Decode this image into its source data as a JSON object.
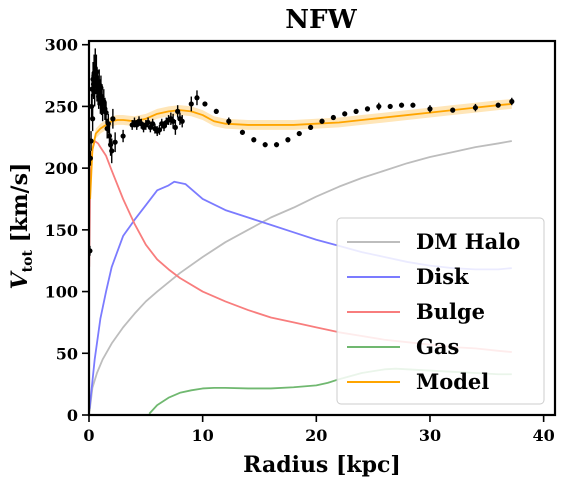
{
  "chart_data": {
    "type": "line",
    "title": "NFW",
    "xlabel": "Radius [kpc]",
    "ylabel_main": "V",
    "ylabel_sub": "tot",
    "ylabel_unit": " [km/s]",
    "xlim": [
      0,
      41
    ],
    "ylim": [
      0,
      303
    ],
    "xticks": [
      0,
      10,
      20,
      30,
      40
    ],
    "yticks": [
      0,
      50,
      100,
      150,
      200,
      250,
      300
    ],
    "legend_position": "lower-right",
    "series": [
      {
        "name": "Model",
        "color": "#ffa500",
        "band": 4,
        "x": [
          0.1,
          0.3,
          0.6,
          1.0,
          1.5,
          2.0,
          2.5,
          3.0,
          4.0,
          5.0,
          6.0,
          7.0,
          8.0,
          9.0,
          10.0,
          11.0,
          12.0,
          14.0,
          16.0,
          18.0,
          20.0,
          22.0,
          24.0,
          26.0,
          28.0,
          30.0,
          32.0,
          34.0,
          36.0,
          37.2
        ],
        "y": [
          175,
          215,
          228,
          232,
          235,
          238,
          239,
          239,
          238,
          240,
          244,
          246,
          247,
          246,
          243,
          238,
          236,
          235,
          235,
          235,
          236,
          237,
          239,
          241,
          243,
          245,
          247,
          249,
          251,
          252
        ]
      },
      {
        "name": "DM Halo",
        "color": "#bdbdbd",
        "x": [
          0.05,
          0.3,
          0.7,
          1.2,
          2,
          3,
          4,
          5,
          6,
          8,
          10,
          12,
          14,
          16,
          18,
          20,
          22,
          24,
          26,
          28,
          30,
          32,
          34,
          36,
          37.2
        ],
        "y": [
          3,
          22,
          34,
          45,
          58,
          71,
          82,
          92,
          100,
          115,
          128,
          140,
          150,
          160,
          168,
          177,
          185,
          192,
          198,
          204,
          209,
          213,
          217,
          220,
          222
        ]
      },
      {
        "name": "Disk",
        "color": "#7b7bff",
        "x": [
          0.05,
          0.5,
          1.0,
          1.5,
          2.0,
          3.0,
          4.0,
          5.0,
          6.0,
          7.0,
          7.5,
          8.5,
          10.0,
          12.0,
          14.0,
          16.0,
          18.0,
          20.0,
          22.0,
          24.0,
          26.0,
          28.0,
          30.0,
          32.0,
          34.0,
          36.0,
          37.2
        ],
        "y": [
          5,
          45,
          78,
          100,
          120,
          145,
          158,
          170,
          182,
          186,
          189,
          187,
          175,
          166,
          160,
          154,
          148,
          142,
          137,
          132,
          128,
          124,
          121,
          119,
          118,
          118,
          119
        ]
      },
      {
        "name": "Bulge",
        "color": "#f87d7d",
        "x": [
          0.02,
          0.1,
          0.3,
          0.5,
          0.8,
          1.0,
          1.5,
          2.0,
          3.0,
          4.0,
          5.0,
          6.0,
          7.0,
          8.0,
          10.0,
          12.0,
          14.0,
          16.0,
          18.0,
          20.0,
          22.0,
          24.0,
          26.0,
          28.0,
          30.0,
          32.0,
          34.0,
          36.0,
          37.2
        ],
        "y": [
          120,
          190,
          215,
          222,
          220,
          217,
          210,
          198,
          175,
          155,
          138,
          126,
          118,
          111,
          100,
          92,
          85,
          79,
          75,
          71,
          67,
          64,
          61,
          59,
          57,
          55,
          54,
          52,
          51
        ]
      },
      {
        "name": "Gas",
        "color": "#70b870",
        "x": [
          5.3,
          6,
          7,
          8,
          9,
          10,
          11,
          12,
          14,
          16,
          18,
          20,
          21,
          22,
          24,
          26,
          27,
          28,
          30,
          32,
          34,
          36,
          37.2
        ],
        "y": [
          1,
          8,
          14,
          18,
          20,
          21.5,
          22,
          22,
          21.5,
          21.5,
          22.5,
          24,
          26,
          29,
          34,
          37,
          37.5,
          37,
          36,
          35,
          34,
          33,
          33
        ]
      },
      {
        "name": "data",
        "color": "#000000",
        "points": [
          [
            0.08,
            133,
            4
          ],
          [
            0.12,
            208,
            6
          ],
          [
            0.18,
            222,
            8
          ],
          [
            0.23,
            250,
            10
          ],
          [
            0.27,
            264,
            12
          ],
          [
            0.32,
            240,
            10
          ],
          [
            0.36,
            272,
            14
          ],
          [
            0.4,
            268,
            12
          ],
          [
            0.45,
            277,
            15
          ],
          [
            0.5,
            262,
            12
          ],
          [
            0.55,
            281,
            16
          ],
          [
            0.6,
            272,
            12
          ],
          [
            0.65,
            278,
            14
          ],
          [
            0.7,
            266,
            12
          ],
          [
            0.75,
            270,
            10
          ],
          [
            0.8,
            263,
            12
          ],
          [
            0.85,
            258,
            10
          ],
          [
            0.9,
            268,
            12
          ],
          [
            0.95,
            262,
            10
          ],
          [
            1.0,
            254,
            10
          ],
          [
            1.05,
            265,
            10
          ],
          [
            1.1,
            252,
            9
          ],
          [
            1.15,
            258,
            10
          ],
          [
            1.2,
            247,
            9
          ],
          [
            1.3,
            254,
            10
          ],
          [
            1.4,
            248,
            9
          ],
          [
            1.5,
            245,
            9
          ],
          [
            1.6,
            232,
            8
          ],
          [
            1.7,
            236,
            8
          ],
          [
            1.8,
            226,
            9
          ],
          [
            1.9,
            219,
            9
          ],
          [
            2.0,
            214,
            10
          ],
          [
            2.1,
            240,
            8
          ],
          [
            2.3,
            221,
            8
          ],
          [
            3.0,
            226,
            5
          ],
          [
            3.8,
            235,
            4
          ],
          [
            4.0,
            237,
            4
          ],
          [
            4.2,
            235,
            4
          ],
          [
            4.4,
            238,
            4
          ],
          [
            4.6,
            236,
            4
          ],
          [
            4.8,
            233,
            4
          ],
          [
            5.0,
            235,
            4
          ],
          [
            5.2,
            237,
            4
          ],
          [
            5.4,
            233,
            4
          ],
          [
            5.6,
            236,
            4
          ],
          [
            5.8,
            232,
            4
          ],
          [
            6.0,
            230,
            4
          ],
          [
            6.2,
            231,
            4
          ],
          [
            6.4,
            236,
            4
          ],
          [
            6.6,
            234,
            4
          ],
          [
            6.8,
            237,
            4
          ],
          [
            7.0,
            239,
            4
          ],
          [
            7.2,
            240,
            5
          ],
          [
            7.4,
            238,
            6
          ],
          [
            7.6,
            233,
            6
          ],
          [
            7.8,
            246,
            5
          ],
          [
            8.0,
            240,
            5
          ],
          [
            8.2,
            238,
            5
          ],
          [
            9.0,
            252,
            6
          ],
          [
            9.5,
            257,
            6
          ],
          [
            10.2,
            252,
            2
          ],
          [
            11.2,
            246,
            2
          ],
          [
            12.3,
            238,
            3
          ],
          [
            13.5,
            229,
            2
          ],
          [
            14.5,
            223,
            2
          ],
          [
            15.5,
            219,
            2
          ],
          [
            16.5,
            219,
            2
          ],
          [
            17.5,
            223,
            2
          ],
          [
            18.5,
            228,
            2
          ],
          [
            19.5,
            233,
            2
          ],
          [
            20.5,
            238,
            2
          ],
          [
            21.5,
            241,
            2
          ],
          [
            22.5,
            244,
            2
          ],
          [
            23.5,
            246,
            2
          ],
          [
            24.5,
            248,
            2
          ],
          [
            25.5,
            250,
            3
          ],
          [
            26.5,
            250,
            2
          ],
          [
            27.5,
            251,
            2
          ],
          [
            28.5,
            251,
            2
          ],
          [
            30.0,
            248,
            3
          ],
          [
            32.0,
            247,
            2
          ],
          [
            34.0,
            249,
            3
          ],
          [
            36.0,
            251,
            2
          ],
          [
            37.2,
            254,
            3
          ]
        ]
      }
    ]
  }
}
